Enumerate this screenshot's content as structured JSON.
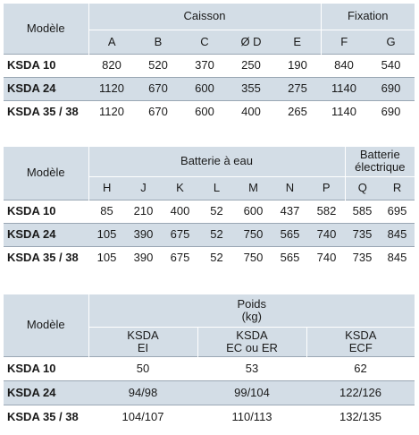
{
  "table1": {
    "model_header": "Modèle",
    "group_caisson": "Caisson",
    "group_fixation": "Fixation",
    "columns": [
      "A",
      "B",
      "C",
      "Ø D",
      "E",
      "F",
      "G"
    ],
    "rows": [
      {
        "model": "KSDA 10",
        "values": [
          "820",
          "520",
          "370",
          "250",
          "190",
          "840",
          "540"
        ]
      },
      {
        "model": "KSDA 24",
        "values": [
          "1120",
          "670",
          "600",
          "355",
          "275",
          "1140",
          "690"
        ]
      },
      {
        "model": "KSDA 35 / 38",
        "values": [
          "1120",
          "670",
          "600",
          "400",
          "265",
          "1140",
          "690"
        ]
      }
    ]
  },
  "table2": {
    "model_header": "Modèle",
    "group_eau": "Batterie à eau",
    "group_elec_line1": "Batterie",
    "group_elec_line2": "électrique",
    "columns": [
      "H",
      "J",
      "K",
      "L",
      "M",
      "N",
      "P",
      "Q",
      "R"
    ],
    "rows": [
      {
        "model": "KSDA 10",
        "values": [
          "85",
          "210",
          "400",
          "52",
          "600",
          "437",
          "582",
          "585",
          "695"
        ]
      },
      {
        "model": "KSDA 24",
        "values": [
          "105",
          "390",
          "675",
          "52",
          "750",
          "565",
          "740",
          "735",
          "845"
        ]
      },
      {
        "model": "KSDA 35 / 38",
        "values": [
          "105",
          "390",
          "675",
          "52",
          "750",
          "565",
          "740",
          "735",
          "845"
        ]
      }
    ]
  },
  "table3": {
    "model_header": "Modèle",
    "group_line1": "Poids",
    "group_line2": "(kg)",
    "columns": [
      {
        "line1": "KSDA",
        "line2": "EI"
      },
      {
        "line1": "KSDA",
        "line2": "EC ou ER"
      },
      {
        "line1": "KSDA",
        "line2": "ECF"
      }
    ],
    "rows": [
      {
        "model": "KSDA 10",
        "values": [
          "50",
          "53",
          "62"
        ]
      },
      {
        "model": "KSDA 24",
        "values": [
          "94/98",
          "99/104",
          "122/126"
        ]
      },
      {
        "model": "KSDA 35 / 38",
        "values": [
          "104/107",
          "110/113",
          "132/135"
        ]
      }
    ]
  }
}
